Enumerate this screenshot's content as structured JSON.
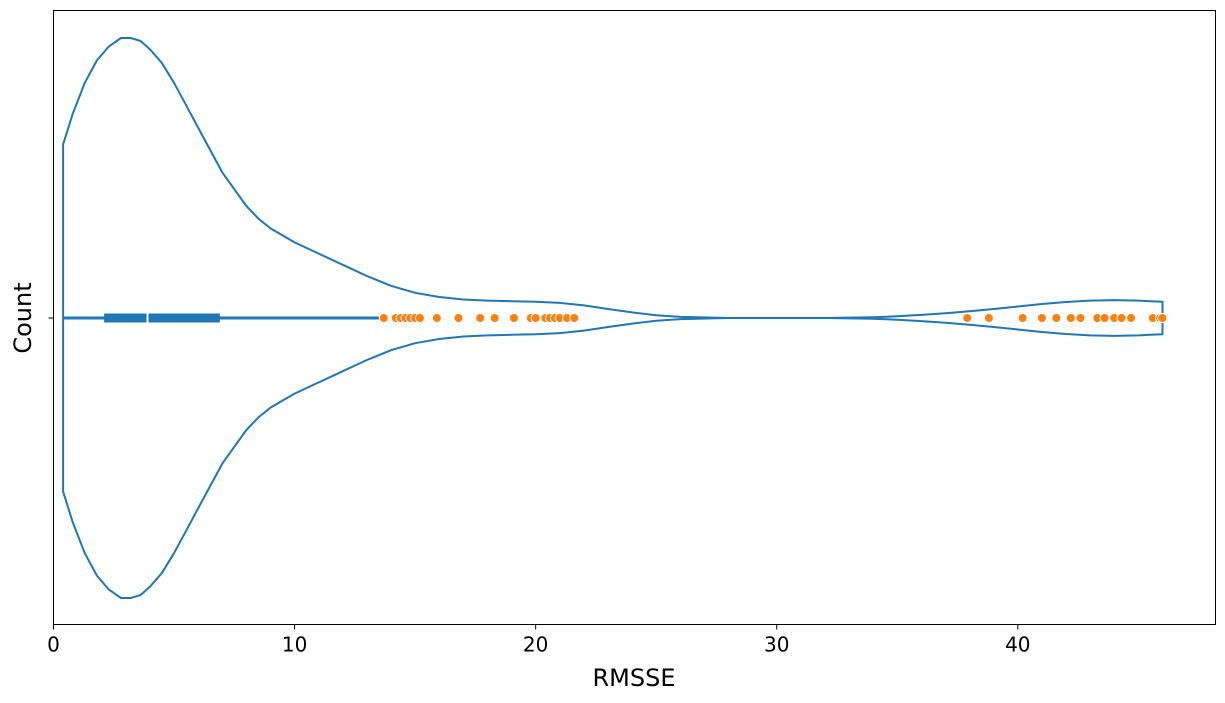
{
  "chart_data": {
    "type": "violin",
    "orientation": "horizontal",
    "title": "",
    "xlabel": "RMSSE",
    "ylabel": "Count",
    "xlim": [
      0,
      48.2
    ],
    "xticks": [
      0,
      10,
      20,
      30,
      40
    ],
    "xtick_labels": [
      "0",
      "10",
      "20",
      "30",
      "40"
    ],
    "yticks": [
      0
    ],
    "ytick_labels": [
      ""
    ],
    "grid": false,
    "colors": {
      "violin": "#1f77b4",
      "outliers": "#ff7f0e",
      "median": "#ffffff"
    },
    "density": {
      "x": [
        0.4,
        0.8,
        1.3,
        1.8,
        2.3,
        2.8,
        3.2,
        3.6,
        4.0,
        4.5,
        5.0,
        5.5,
        6.0,
        6.5,
        7.0,
        7.5,
        8.0,
        8.5,
        9.0,
        9.5,
        10.0,
        11.0,
        12.0,
        13.0,
        14.0,
        15.0,
        16.0,
        17.0,
        18.0,
        19.0,
        20.0,
        21.0,
        22.0,
        23.0,
        24.0,
        25.0,
        26.0,
        28.0,
        30.0,
        32.0,
        34.0,
        35.0,
        36.0,
        37.0,
        38.0,
        39.0,
        40.0,
        41.0,
        42.0,
        43.0,
        44.0,
        45.0,
        45.5,
        46.0
      ],
      "y": [
        0.62,
        0.73,
        0.84,
        0.92,
        0.97,
        1.0,
        1.0,
        0.99,
        0.96,
        0.91,
        0.84,
        0.76,
        0.68,
        0.6,
        0.52,
        0.46,
        0.4,
        0.355,
        0.32,
        0.295,
        0.27,
        0.23,
        0.19,
        0.15,
        0.115,
        0.09,
        0.075,
        0.066,
        0.062,
        0.06,
        0.058,
        0.054,
        0.045,
        0.032,
        0.02,
        0.01,
        0.004,
        0.0,
        0.0,
        0.0,
        0.003,
        0.006,
        0.011,
        0.017,
        0.024,
        0.032,
        0.041,
        0.05,
        0.057,
        0.062,
        0.064,
        0.062,
        0.06,
        0.058
      ]
    },
    "box": {
      "whisker_low": 0.4,
      "q1": 2.1,
      "median": 3.9,
      "q3": 6.9,
      "whisker_high": 13.5
    },
    "outliers": [
      13.7,
      14.2,
      14.4,
      14.6,
      14.8,
      15.0,
      15.2,
      15.9,
      16.8,
      17.7,
      18.3,
      19.1,
      19.8,
      20.0,
      20.4,
      20.6,
      20.8,
      21.0,
      21.3,
      21.6,
      37.9,
      38.8,
      40.2,
      41.0,
      41.6,
      42.2,
      42.6,
      43.3,
      43.6,
      44.0,
      44.3,
      44.7,
      45.6,
      45.9,
      46.0
    ]
  }
}
